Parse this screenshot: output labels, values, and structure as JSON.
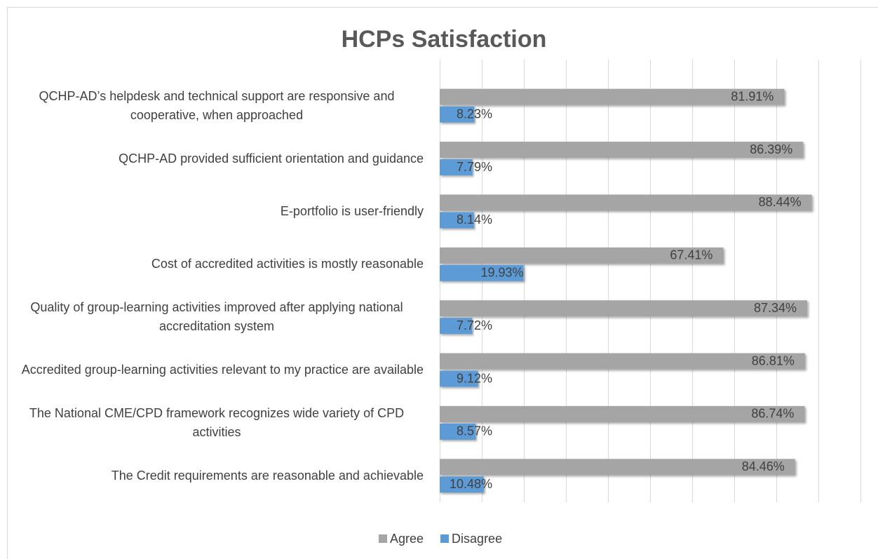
{
  "chart_data": {
    "type": "bar",
    "orientation": "horizontal",
    "title": "HCPs Satisfaction",
    "categories": [
      "QCHP-AD’s helpdesk and technical support are responsive and cooperative, when approached",
      "QCHP-AD provided sufficient orientation and guidance",
      "E-portfolio is user-friendly",
      "Cost of accredited activities is mostly reasonable",
      "Quality of group-learning activities improved after applying national accreditation system",
      "Accredited group-learning activities relevant to my practice are available",
      "The National CME/CPD framework recognizes wide variety of CPD activities",
      "The Credit requirements are reasonable and achievable"
    ],
    "series": [
      {
        "name": "Agree",
        "color": "#a5a5a5",
        "values": [
          81.91,
          86.39,
          88.44,
          67.41,
          87.34,
          86.81,
          86.74,
          84.46
        ],
        "value_labels": [
          "81.91%",
          "86.39%",
          "88.44%",
          "67.41%",
          "87.34%",
          "86.81%",
          "86.74%",
          "84.46%"
        ]
      },
      {
        "name": "Disagree",
        "color": "#5b9bd5",
        "values": [
          8.23,
          7.79,
          8.14,
          19.93,
          7.72,
          9.12,
          8.57,
          10.48
        ],
        "value_labels": [
          "8.23%",
          "7.79%",
          "8.14%",
          "19.93%",
          "7.72%",
          "9.12%",
          "8.57%",
          "10.48%"
        ]
      }
    ],
    "xlim": [
      0,
      100
    ],
    "xticks": [
      0,
      10,
      20,
      30,
      40,
      50,
      60,
      70,
      80,
      90,
      100
    ],
    "grid": true,
    "legend": "bottom"
  }
}
